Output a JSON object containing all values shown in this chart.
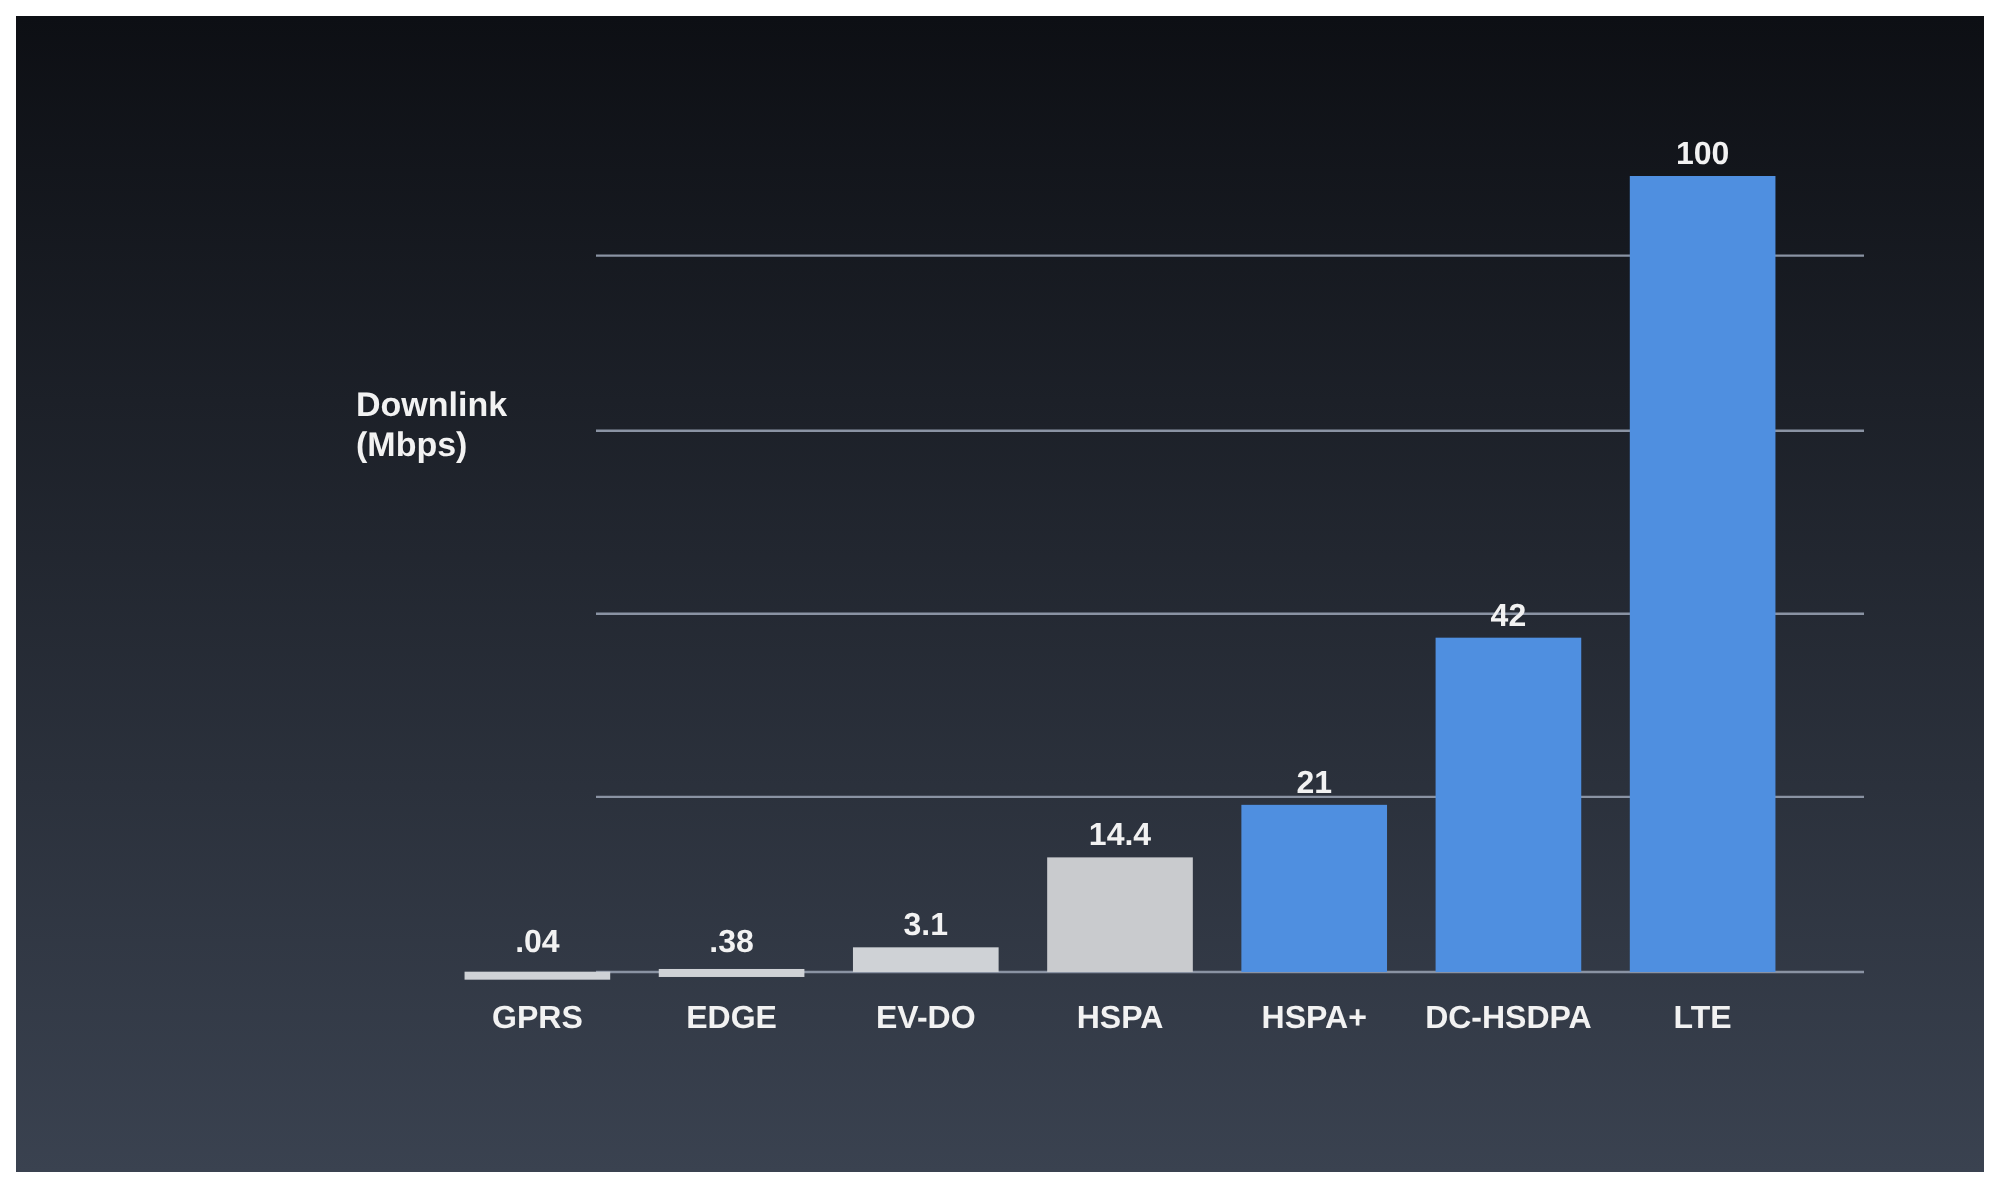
{
  "chart_data": {
    "type": "bar",
    "ylabel": "Downlink (Mbps)",
    "categories": [
      "GPRS",
      "EDGE",
      "EV-DO",
      "HSPA",
      "HSPA+",
      "DC-HSDPA",
      "LTE"
    ],
    "values": [
      0.04,
      0.38,
      3.1,
      14.4,
      21,
      42,
      100
    ],
    "value_labels": [
      ".04",
      ".38",
      "3.1",
      "14.4",
      "21",
      "42",
      "100"
    ],
    "colors": [
      "#cfd2d6",
      "#cfd2d6",
      "#cfd2d6",
      "#c9cbce",
      "#4f8fe0",
      "#4f8fe0",
      "#4f8fe0"
    ],
    "yticks": [
      {
        "value": 0,
        "label": null
      },
      {
        "value": 22,
        "label": null
      },
      {
        "value": 45,
        "label": null
      },
      {
        "value": 68,
        "label": null
      },
      {
        "value": 90,
        "label": null
      }
    ],
    "grid": "y"
  }
}
